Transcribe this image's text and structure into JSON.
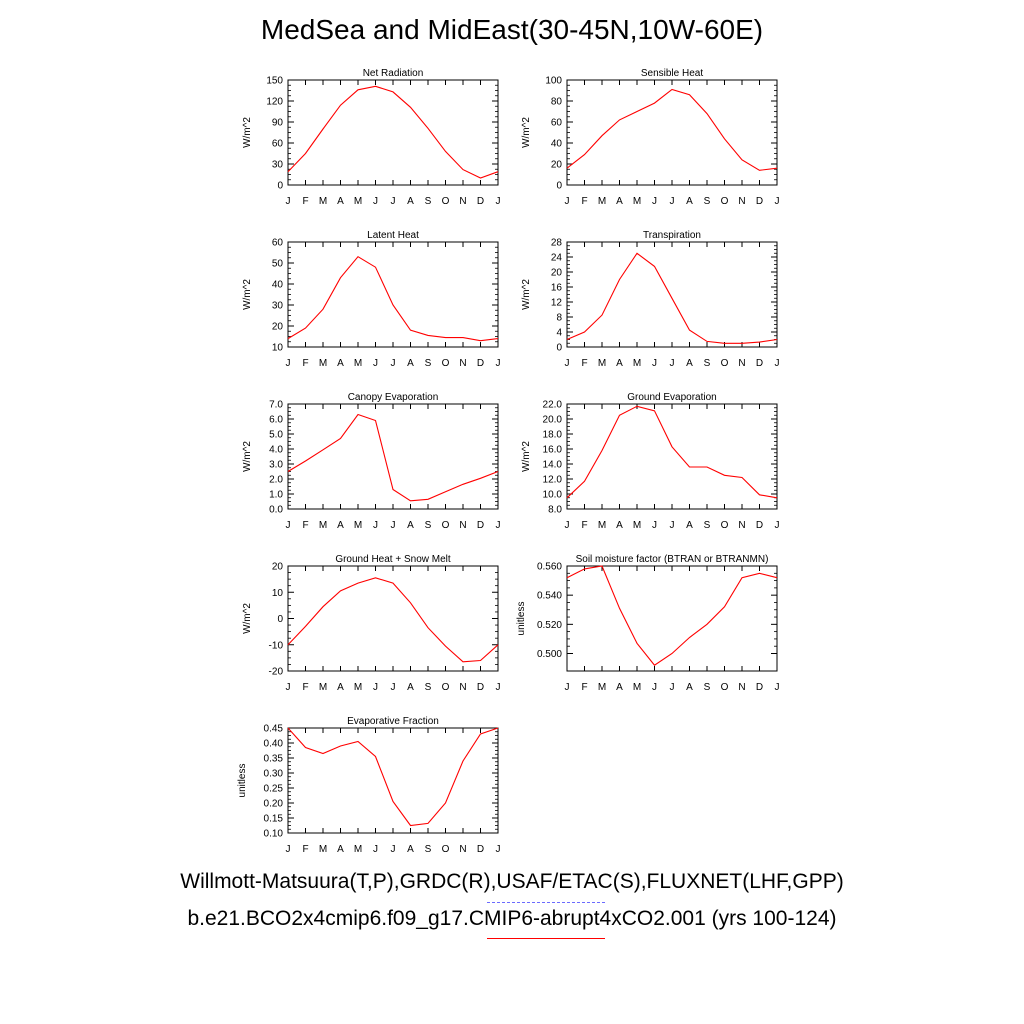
{
  "title": "MedSea and MidEast(30-45N,10W-60E)",
  "legend": {
    "obs_label": "Willmott-Matsuura(T,P),GRDC(R),USAF/ETAC(S),FLUXNET(LHF,GPP)",
    "model_label": "b.e21.BCO2x4cmip6.f09_g17.CMIP6-abrupt4xCO2.001 (yrs 100-124)",
    "obs_color": "#6b6bff",
    "model_color": "#ff0000"
  },
  "chart_data": [
    {
      "type": "line",
      "title": "Net Radiation",
      "ylabel": "W/m^2",
      "categories": [
        "J",
        "F",
        "M",
        "A",
        "M",
        "J",
        "J",
        "A",
        "S",
        "O",
        "N",
        "D",
        "J"
      ],
      "ylim": [
        0,
        150
      ],
      "yticks": [
        "0",
        "30",
        "60",
        "90",
        "120",
        "150"
      ],
      "series": [
        {
          "values": [
            19,
            45,
            80,
            114,
            136,
            141,
            133,
            111,
            81,
            48,
            22,
            10,
            19
          ]
        }
      ]
    },
    {
      "type": "line",
      "title": "Sensible Heat",
      "ylabel": "W/m^2",
      "categories": [
        "J",
        "F",
        "M",
        "A",
        "M",
        "J",
        "J",
        "A",
        "S",
        "O",
        "N",
        "D",
        "J"
      ],
      "ylim": [
        0,
        100
      ],
      "yticks": [
        "0",
        "20",
        "40",
        "60",
        "80",
        "100"
      ],
      "series": [
        {
          "values": [
            16,
            29,
            47,
            62,
            70,
            78,
            91,
            86,
            68,
            44,
            24,
            14,
            16
          ]
        }
      ]
    },
    {
      "type": "line",
      "title": "Latent Heat",
      "ylabel": "W/m^2",
      "categories": [
        "J",
        "F",
        "M",
        "A",
        "M",
        "J",
        "J",
        "A",
        "S",
        "O",
        "N",
        "D",
        "J"
      ],
      "ylim": [
        10,
        60
      ],
      "yticks": [
        "10",
        "20",
        "30",
        "40",
        "50",
        "60"
      ],
      "series": [
        {
          "values": [
            14,
            19,
            28,
            43,
            53,
            48,
            30,
            18,
            15.5,
            14.5,
            14.5,
            13,
            14
          ]
        }
      ]
    },
    {
      "type": "line",
      "title": "Transpiration",
      "ylabel": "W/m^2",
      "categories": [
        "J",
        "F",
        "M",
        "A",
        "M",
        "J",
        "J",
        "A",
        "S",
        "O",
        "N",
        "D",
        "J"
      ],
      "ylim": [
        0,
        28
      ],
      "yticks": [
        "0",
        "4",
        "8",
        "12",
        "16",
        "20",
        "24",
        "28"
      ],
      "series": [
        {
          "values": [
            2,
            4,
            8.5,
            18,
            25,
            21.5,
            13,
            4.5,
            1.5,
            1,
            1,
            1.3,
            2
          ]
        }
      ]
    },
    {
      "type": "line",
      "title": "Canopy Evaporation",
      "ylabel": "W/m^2",
      "categories": [
        "J",
        "F",
        "M",
        "A",
        "M",
        "J",
        "J",
        "A",
        "S",
        "O",
        "N",
        "D",
        "J"
      ],
      "ylim": [
        0,
        7
      ],
      "yticks": [
        "0.0",
        "1.0",
        "2.0",
        "3.0",
        "4.0",
        "5.0",
        "6.0",
        "7.0"
      ],
      "series": [
        {
          "values": [
            2.5,
            3.2,
            3.95,
            4.7,
            6.3,
            5.9,
            1.3,
            0.55,
            0.65,
            1.15,
            1.65,
            2.05,
            2.5
          ]
        }
      ]
    },
    {
      "type": "line",
      "title": "Ground Evaporation",
      "ylabel": "W/m^2",
      "categories": [
        "J",
        "F",
        "M",
        "A",
        "M",
        "J",
        "J",
        "A",
        "S",
        "O",
        "N",
        "D",
        "J"
      ],
      "ylim": [
        8,
        22
      ],
      "yticks": [
        "8.0",
        "10.0",
        "12.0",
        "14.0",
        "16.0",
        "18.0",
        "20.0",
        "22.0"
      ],
      "series": [
        {
          "values": [
            9.5,
            11.7,
            15.8,
            20.5,
            21.7,
            21.1,
            16.3,
            13.6,
            13.6,
            12.5,
            12.2,
            9.9,
            9.5
          ]
        }
      ]
    },
    {
      "type": "line",
      "title": "Ground Heat + Snow Melt",
      "ylabel": "W/m^2",
      "categories": [
        "J",
        "F",
        "M",
        "A",
        "M",
        "J",
        "J",
        "A",
        "S",
        "O",
        "N",
        "D",
        "J"
      ],
      "ylim": [
        -20,
        20
      ],
      "yticks": [
        "-20",
        "-10",
        "0",
        "10",
        "20"
      ],
      "series": [
        {
          "values": [
            -10,
            -3,
            4.5,
            10.5,
            13.5,
            15.5,
            13.5,
            6,
            -3.5,
            -10.5,
            -16.5,
            -16,
            -10
          ]
        }
      ]
    },
    {
      "type": "line",
      "title": "Soil moisture factor (BTRAN or BTRANMN)",
      "ylabel": "unitless",
      "categories": [
        "J",
        "F",
        "M",
        "A",
        "M",
        "J",
        "J",
        "A",
        "S",
        "O",
        "N",
        "D",
        "J"
      ],
      "ylim": [
        0.488,
        0.56
      ],
      "yticks": [
        "0.500",
        "0.520",
        "0.540",
        "0.560"
      ],
      "series": [
        {
          "values": [
            0.552,
            0.558,
            0.56,
            0.531,
            0.507,
            0.492,
            0.5,
            0.511,
            0.52,
            0.532,
            0.552,
            0.555,
            0.552
          ]
        }
      ]
    },
    {
      "type": "line",
      "title": "Evaporative Fraction",
      "ylabel": "unitless",
      "categories": [
        "J",
        "F",
        "M",
        "A",
        "M",
        "J",
        "J",
        "A",
        "S",
        "O",
        "N",
        "D",
        "J"
      ],
      "ylim": [
        0.1,
        0.45
      ],
      "yticks": [
        "0.10",
        "0.15",
        "0.20",
        "0.25",
        "0.30",
        "0.35",
        "0.40",
        "0.45"
      ],
      "series": [
        {
          "values": [
            0.45,
            0.385,
            0.365,
            0.39,
            0.405,
            0.355,
            0.205,
            0.125,
            0.132,
            0.2,
            0.34,
            0.43,
            0.45
          ]
        }
      ]
    }
  ]
}
